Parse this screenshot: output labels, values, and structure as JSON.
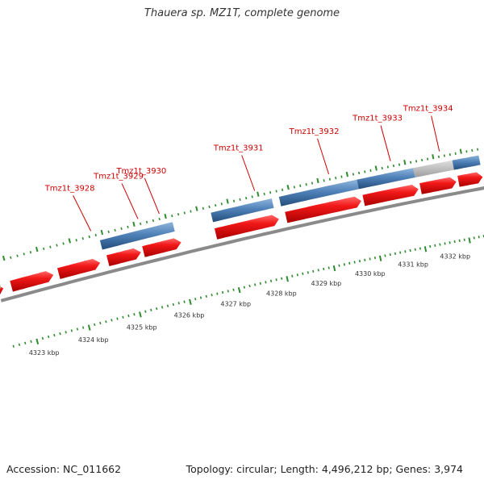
{
  "title": "Thauera sp. MZ1T, complete genome",
  "footer": {
    "accession": "Accession: NC_011662",
    "summary": "Topology: circular; Length: 4,496,212 bp; Genes: 3,974"
  },
  "colors": {
    "forward_gene": "#e81c1c",
    "cds_feature": "#4f81b8",
    "other_feature": "#c4c4c4",
    "backbone": "#8a8a8a",
    "tick": "#2e8b2e",
    "gene_label": "#cc0000"
  },
  "gene_labels": [
    {
      "text": "Tmz1t_3928",
      "anchor": 0.193
    },
    {
      "text": "Tmz1t_3929",
      "anchor": 0.285
    },
    {
      "text": "Tmz1t_3930",
      "anchor": 0.327
    },
    {
      "text": "Tmz1t_3931",
      "anchor": 0.52
    },
    {
      "text": "Tmz1t_3932",
      "anchor": 0.675
    },
    {
      "text": "Tmz1t_3933",
      "anchor": 0.808
    },
    {
      "text": "Tmz1t_3934",
      "anchor": 0.916
    }
  ],
  "scale_labels": [
    {
      "text": "4323 kbp",
      "t": 0.05
    },
    {
      "text": "4324 kbp",
      "t": 0.145
    },
    {
      "text": "4325 kbp",
      "t": 0.24
    },
    {
      "text": "4326 kbp",
      "t": 0.335
    },
    {
      "text": "4327 kbp",
      "t": 0.43
    },
    {
      "text": "4328 kbp",
      "t": 0.525
    },
    {
      "text": "4329 kbp",
      "t": 0.62
    },
    {
      "text": "4330 kbp",
      "t": 0.715
    },
    {
      "text": "4331 kbp",
      "t": 0.81
    },
    {
      "text": "4332 kbp",
      "t": 0.905
    }
  ],
  "genes_forward": [
    {
      "start": 0.0,
      "end": 0.01
    },
    {
      "start": 0.025,
      "end": 0.105
    },
    {
      "start": 0.115,
      "end": 0.195
    },
    {
      "start": 0.21,
      "end": 0.275
    },
    {
      "start": 0.28,
      "end": 0.355
    },
    {
      "start": 0.425,
      "end": 0.555
    },
    {
      "start": 0.57,
      "end": 0.73
    },
    {
      "start": 0.735,
      "end": 0.855
    },
    {
      "start": 0.86,
      "end": 0.94
    },
    {
      "start": 0.945,
      "end": 1.0
    }
  ],
  "features": [
    {
      "start": 0.205,
      "end": 0.348,
      "kind": "cds"
    },
    {
      "start": 0.425,
      "end": 0.55,
      "kind": "cds"
    },
    {
      "start": 0.565,
      "end": 0.73,
      "kind": "cds"
    },
    {
      "start": 0.73,
      "end": 0.853,
      "kind": "cds"
    },
    {
      "start": 0.853,
      "end": 0.94,
      "kind": "other"
    },
    {
      "start": 0.94,
      "end": 1.0,
      "kind": "cds"
    }
  ]
}
